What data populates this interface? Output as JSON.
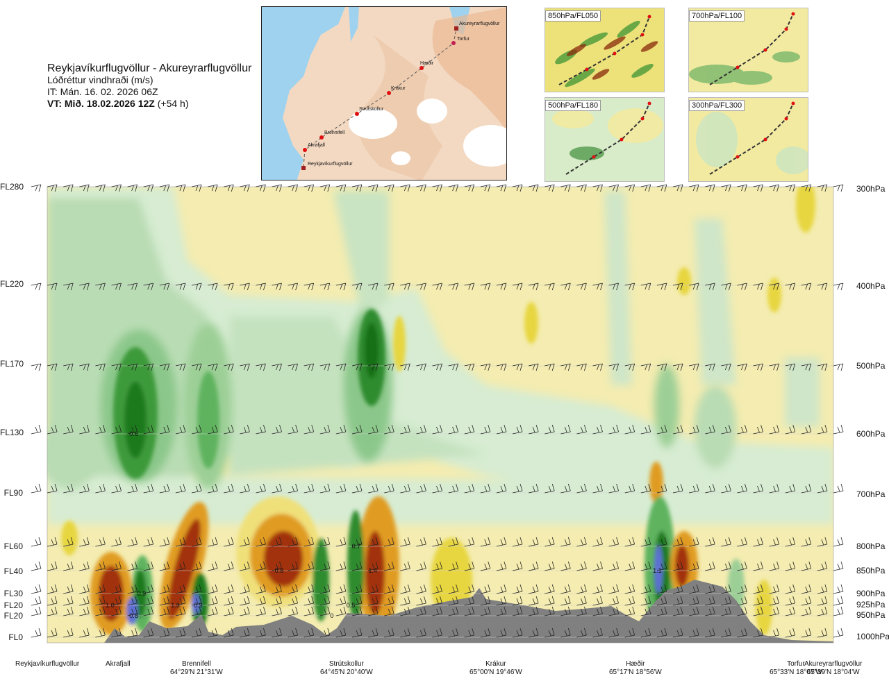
{
  "header": {
    "route": "Reykjavíkurflugvöllur - Akureyrarflugvöllur",
    "quantity": "Lóðréttur vindhraði (m/s)",
    "it": "IT: Mán. 16. 02. 2026 06Z",
    "vt": "VT: Mið. 18.02.2026 12Z",
    "vt_offset": "(+54 h)"
  },
  "map": {
    "points": [
      "Akureyrarflugvöllur",
      "Torfur",
      "Hæðir",
      "Krákur",
      "Strútskollur",
      "Brennifell",
      "Akrafjall",
      "Reykjavíkurflugvöllur"
    ]
  },
  "thumbnails": [
    {
      "label": "850hPa/FL050"
    },
    {
      "label": "700hPa/FL100"
    },
    {
      "label": "500hPa/FL180"
    },
    {
      "label": "300hPa/FL300"
    }
  ],
  "levels": [
    {
      "fl": "FL280",
      "hpa": "300hPa"
    },
    {
      "fl": "FL220",
      "hpa": "400hPa"
    },
    {
      "fl": "FL170",
      "hpa": "500hPa"
    },
    {
      "fl": "FL130",
      "hpa": "600hPa"
    },
    {
      "fl": "FL90",
      "hpa": "700hPa"
    },
    {
      "fl": "FL60",
      "hpa": "800hPa"
    },
    {
      "fl": "FL40",
      "hpa": "850hPa"
    },
    {
      "fl": "FL30",
      "hpa": "900hPa"
    },
    {
      "fl": "FL20",
      "hpa": "925hPa"
    },
    {
      "fl": "FL20",
      "hpa": "950hPa"
    },
    {
      "fl": "FL0",
      "hpa": "1000hPa"
    }
  ],
  "stations": [
    {
      "name": "Reykjavíkurflugvöllur",
      "coord": ""
    },
    {
      "name": "Akrafjall",
      "coord": ""
    },
    {
      "name": "Brennifell",
      "coord": "64°29'N 21°31'W"
    },
    {
      "name": "Strútskollur",
      "coord": "64°45'N 20°40'W"
    },
    {
      "name": "Krákur",
      "coord": "65°00'N 19°46'W"
    },
    {
      "name": "Hæðir",
      "coord": "65°17'N 18°56'W"
    },
    {
      "name": "Torfur",
      "coord": "65°33'N 18°07'W"
    },
    {
      "name": "Akureyrarflugvöllur",
      "coord": "65°39'N 18°04'W"
    }
  ],
  "colors": {
    "strong_down": "#1f7a1f",
    "mid_down": "#5fb35f",
    "weak_down": "#a9d6a9",
    "very_weak_down": "#d7ecd2",
    "weak_up": "#f4ecb0",
    "mid_up": "#e7d640",
    "up": "#e09c20",
    "strong_up": "#a23010",
    "extreme_down": "#5f6fd6",
    "terrain": "#808080"
  },
  "chart_data": {
    "type": "heatmap",
    "title": "Lóðréttur vindhraði (m/s)",
    "x_stations": [
      "Reykjavíkurflugvöllur",
      "Akrafjall",
      "Brennifell",
      "Strútskollur",
      "Krákur",
      "Hæðir",
      "Torfur",
      "Akureyrarflugvöllur"
    ],
    "y_levels_hpa": [
      1000,
      950,
      925,
      900,
      850,
      800,
      700,
      600,
      500,
      400,
      300
    ],
    "y_levels_fl": [
      "FL0",
      "FL20",
      "FL20",
      "FL30",
      "FL40",
      "FL60",
      "FL90",
      "FL130",
      "FL170",
      "FL220",
      "FL280"
    ],
    "labelled_values": [
      {
        "text": "0.6",
        "x_frac": 0.11,
        "hpa": 600
      },
      {
        "text": "1.0",
        "x_frac": 0.08,
        "hpa": 925
      },
      {
        "text": "0.8",
        "x_frac": 0.11,
        "hpa": 950
      },
      {
        "text": "0.9",
        "x_frac": 0.12,
        "hpa": 900
      },
      {
        "text": "1.3",
        "x_frac": 0.163,
        "hpa": 925
      },
      {
        "text": "0.9",
        "x_frac": 0.192,
        "hpa": 925
      },
      {
        "text": "0.8",
        "x_frac": 0.295,
        "hpa": 850
      },
      {
        "text": "0.7",
        "x_frac": 0.393,
        "hpa": 800
      },
      {
        "text": "1.4",
        "x_frac": 0.414,
        "hpa": 850
      },
      {
        "text": "0.5",
        "x_frac": 0.386,
        "hpa": 925
      },
      {
        "text": "0",
        "x_frac": 0.362,
        "hpa": 950
      },
      {
        "text": "1.1",
        "x_frac": 0.776,
        "hpa": 850
      }
    ],
    "legend": "none",
    "grid": true
  }
}
